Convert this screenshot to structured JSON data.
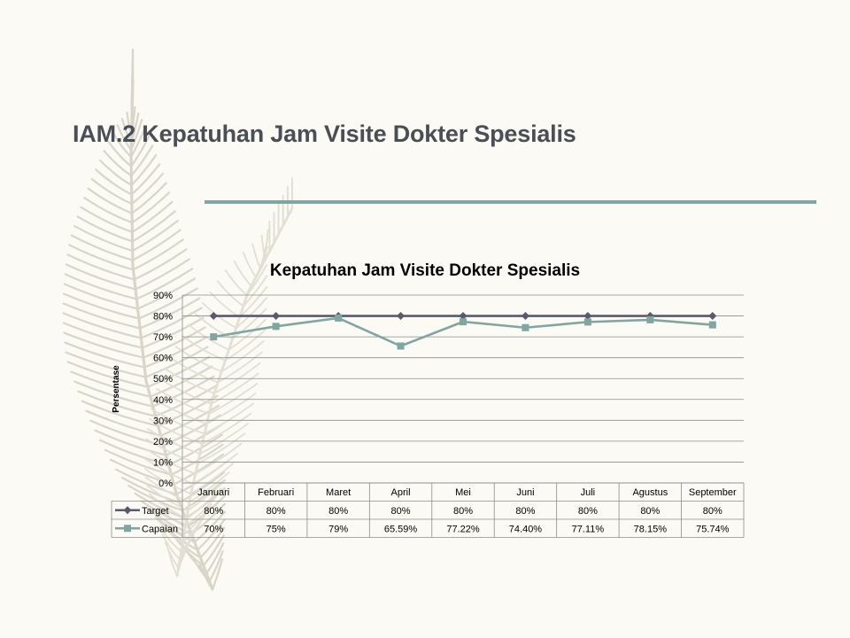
{
  "slide": {
    "title": "IAM.2 Kepatuhan Jam Visite Dokter Spesialis",
    "accent_color": "#7fa6a1",
    "decoration_icon": "feather-icon"
  },
  "chart_data": {
    "type": "line",
    "title": "Kepatuhan Jam Visite Dokter Spesialis",
    "ylabel": "Persentase",
    "xlabel": "",
    "ylim": [
      0,
      90
    ],
    "yticks": [
      "0%",
      "10%",
      "20%",
      "30%",
      "40%",
      "50%",
      "60%",
      "70%",
      "80%",
      "90%"
    ],
    "y_tick_values": [
      0,
      10,
      20,
      30,
      40,
      50,
      60,
      70,
      80,
      90
    ],
    "grid": true,
    "legend": "data-table",
    "categories": [
      "Januari",
      "Februari",
      "Maret",
      "April",
      "Mei",
      "Juni",
      "Juli",
      "Agustus",
      "September"
    ],
    "series": [
      {
        "name": "Target",
        "color": "#5a5a6e",
        "marker": "diamond",
        "values": [
          80,
          80,
          80,
          80,
          80,
          80,
          80,
          80,
          80
        ],
        "labels": [
          "80%",
          "80%",
          "80%",
          "80%",
          "80%",
          "80%",
          "80%",
          "80%",
          "80%"
        ]
      },
      {
        "name": "Capaian",
        "color": "#7fa6a1",
        "marker": "square",
        "values": [
          70,
          75,
          79,
          65.59,
          77.22,
          74.4,
          77.11,
          78.15,
          75.74
        ],
        "labels": [
          "70%",
          "75%",
          "79%",
          "65.59%",
          "77.22%",
          "74.40%",
          "77.11%",
          "78.15%",
          "75.74%"
        ]
      }
    ]
  }
}
